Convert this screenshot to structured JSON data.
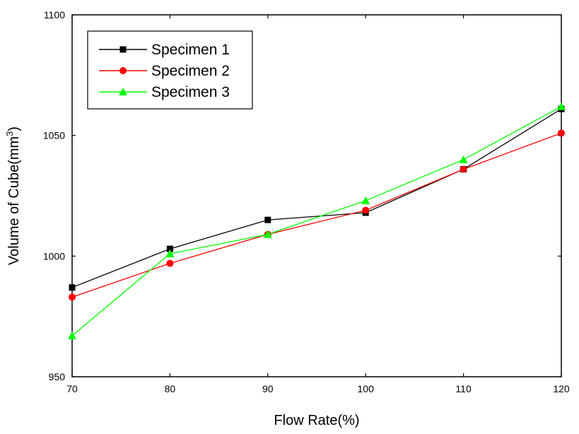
{
  "chart_data": {
    "type": "line",
    "title": "",
    "xlabel": "Flow Rate(%)",
    "ylabel_main": "Volume of Cube(mm",
    "ylabel_sup": "3",
    "ylabel_tail": ")",
    "x": [
      70,
      80,
      90,
      100,
      110,
      120
    ],
    "xlim": [
      70,
      120
    ],
    "ylim": [
      950,
      1100
    ],
    "xticks": [
      70,
      80,
      90,
      100,
      110,
      120
    ],
    "yticks": [
      950,
      1000,
      1050,
      1100
    ],
    "grid": false,
    "legend_position": "top-left",
    "series": [
      {
        "name": "Specimen 1",
        "color": "#000000",
        "marker": "square",
        "values": [
          987,
          1003,
          1015,
          1018,
          1036,
          1061
        ]
      },
      {
        "name": "Specimen 2",
        "color": "#ff0000",
        "marker": "circle",
        "values": [
          983,
          997,
          1009,
          1019,
          1036,
          1051
        ]
      },
      {
        "name": "Specimen 3",
        "color": "#00ff00",
        "marker": "triangle",
        "values": [
          967,
          1001,
          1009,
          1023,
          1040,
          1062
        ]
      }
    ]
  }
}
